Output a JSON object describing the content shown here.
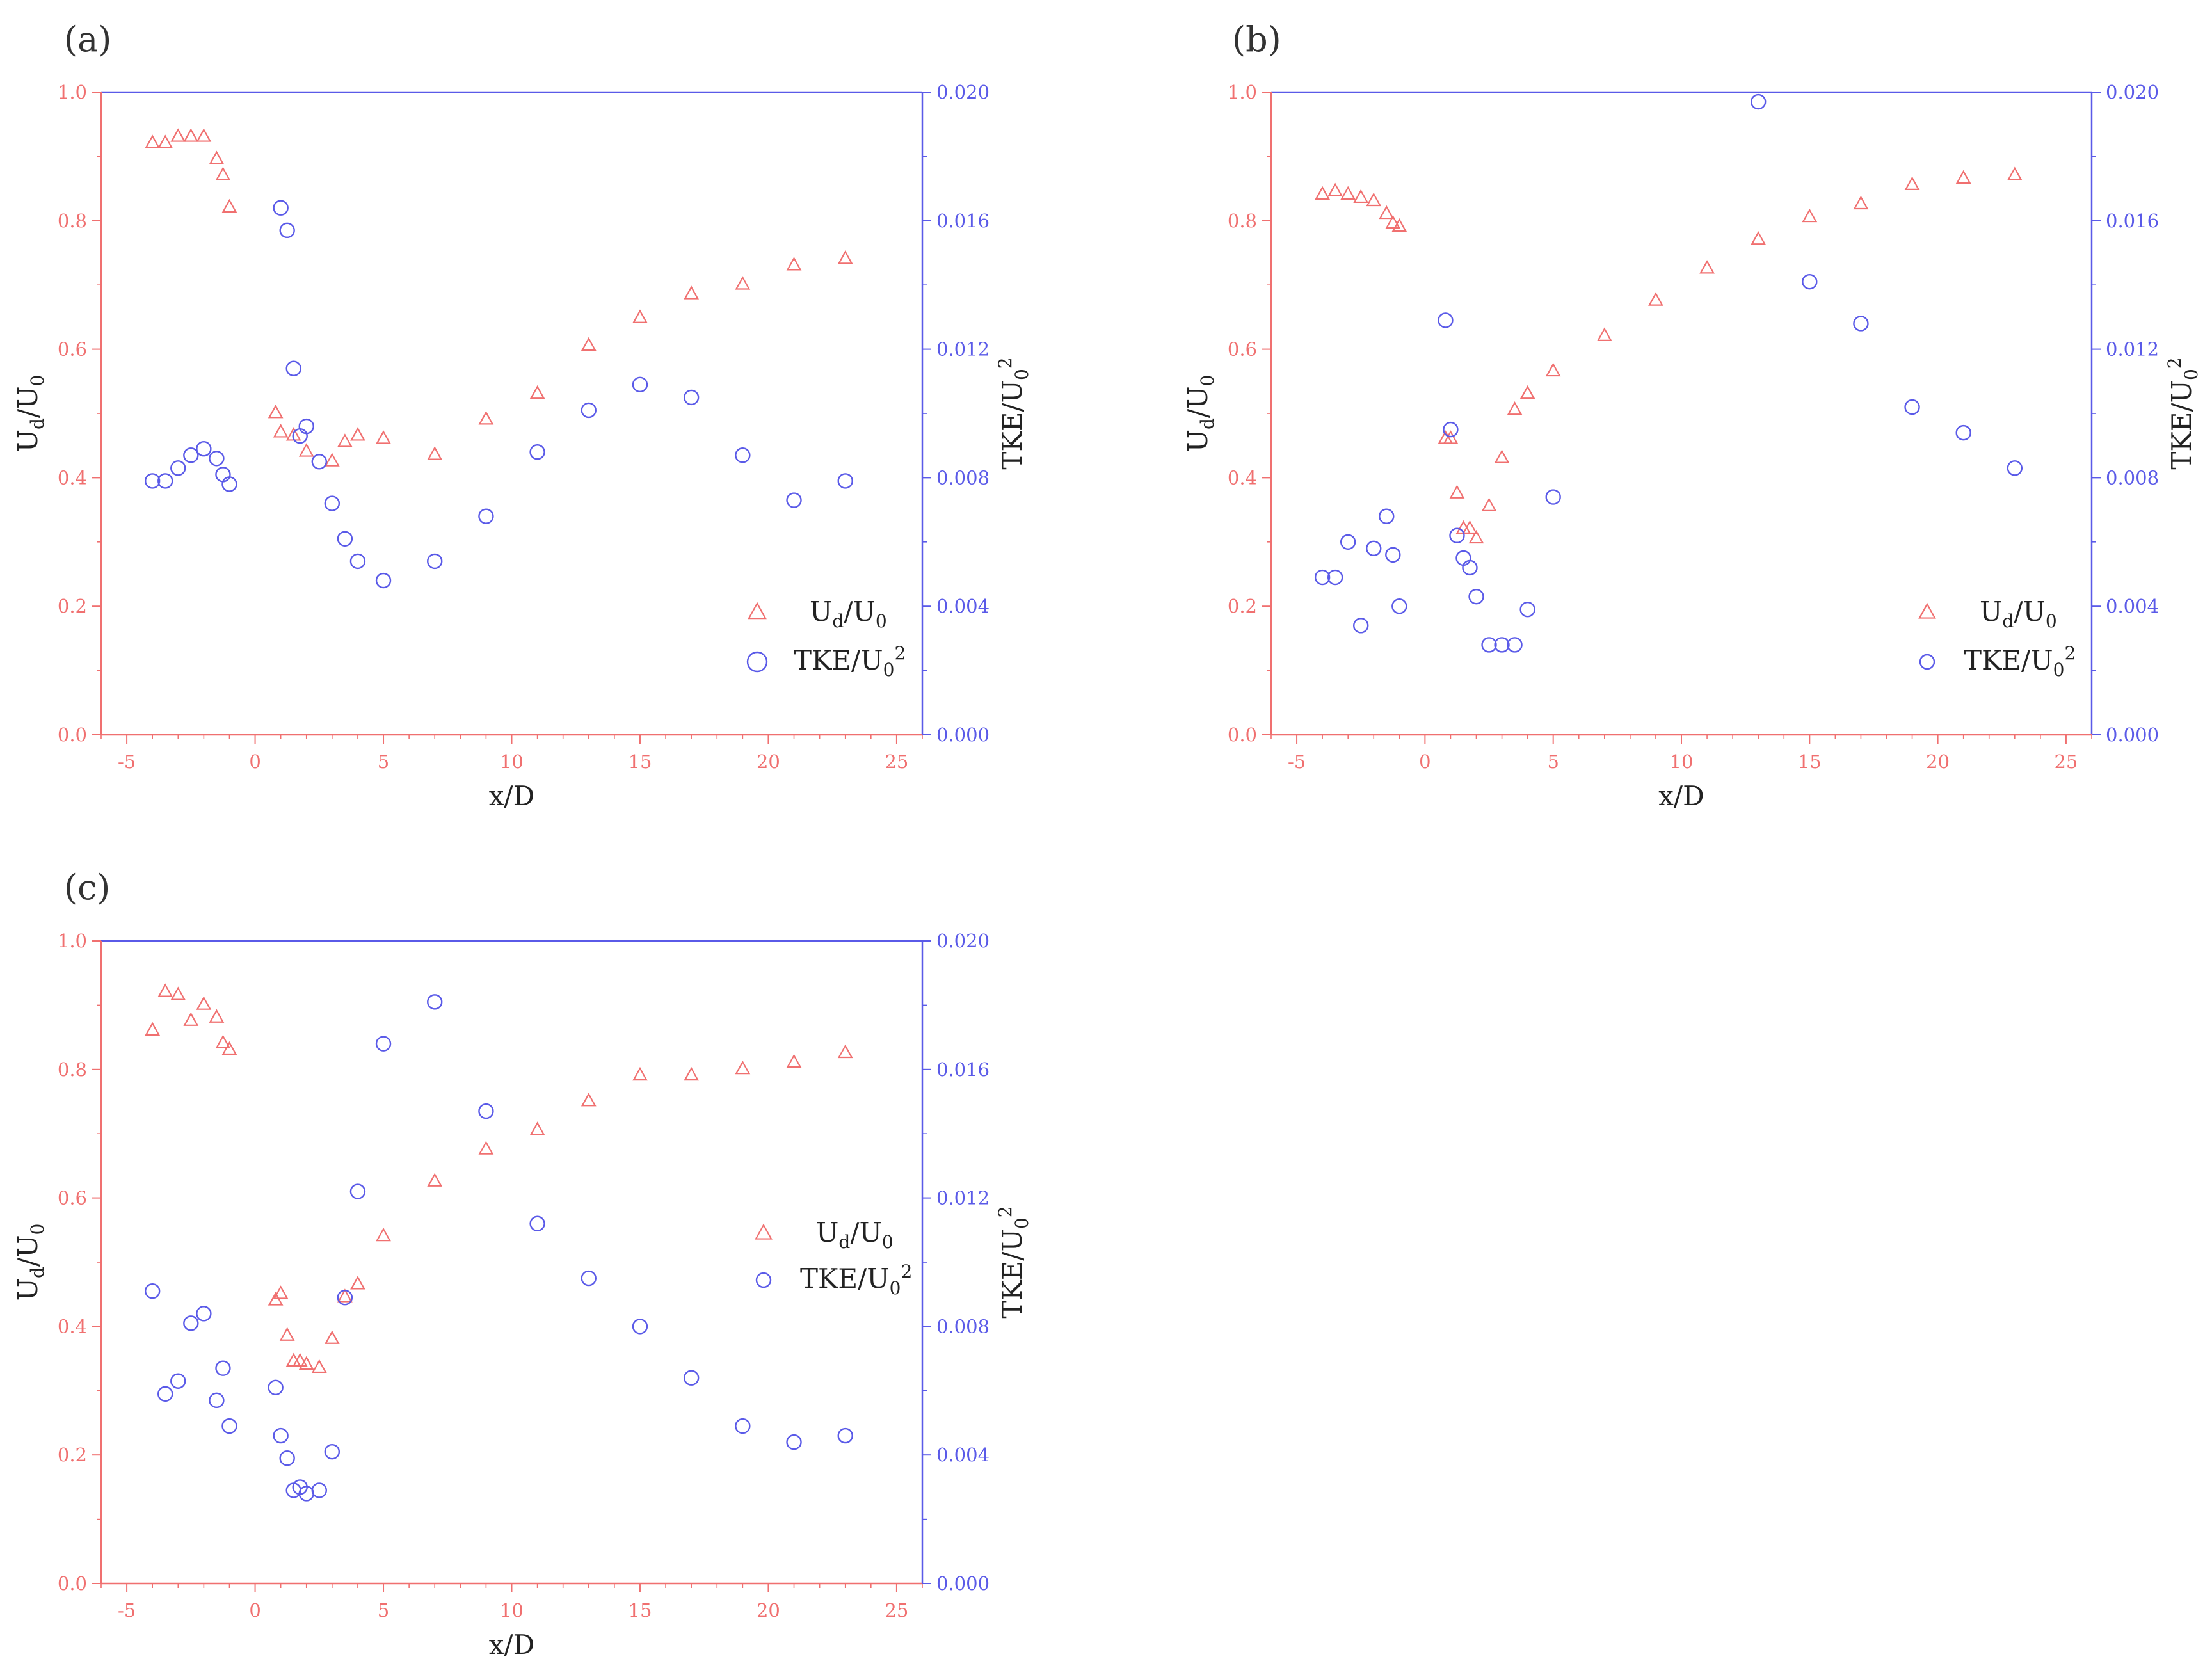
{
  "colors": {
    "ud": "#f07070",
    "tke": "#5a5ae8",
    "text": "#222222"
  },
  "chart_data": [
    {
      "type": "scatter",
      "panel_label": "(a)",
      "xlabel": "x/D",
      "ylabel_left": "U_d/U_0",
      "ylabel_right": "TKE/U_0^2",
      "xlim": [
        -6,
        26
      ],
      "xticks": [
        "-5",
        "0",
        "5",
        "10",
        "15",
        "20",
        "25"
      ],
      "ylim_left": [
        0,
        1
      ],
      "yticks_left": [
        "0.0",
        "0.2",
        "0.4",
        "0.6",
        "0.8",
        "1.0"
      ],
      "ylim_right": [
        0,
        0.02
      ],
      "yticks_right": [
        "0.000",
        "0.004",
        "0.008",
        "0.012",
        "0.016",
        "0.020"
      ],
      "legend_position": "bottom-right",
      "series": [
        {
          "name": "U_d/U_0",
          "axis": "left",
          "marker": "triangle",
          "x": [
            -4,
            -3.5,
            -3,
            -2.5,
            -2,
            -1.5,
            -1.25,
            -1,
            0.8,
            1,
            1.5,
            2,
            3,
            3.5,
            4,
            5,
            7,
            9,
            11,
            13,
            15,
            17,
            19,
            21,
            23
          ],
          "y": [
            0.92,
            0.92,
            0.93,
            0.93,
            0.93,
            0.895,
            0.87,
            0.82,
            0.5,
            0.47,
            0.465,
            0.44,
            0.425,
            0.455,
            0.465,
            0.46,
            0.435,
            0.49,
            0.53,
            0.605,
            0.648,
            0.685,
            0.7,
            0.73,
            0.74
          ]
        },
        {
          "name": "TKE/U_0^2",
          "axis": "right",
          "marker": "circle",
          "x": [
            -4,
            -3.5,
            -3,
            -2.5,
            -2,
            -1.5,
            -1.25,
            -1,
            1,
            1.25,
            1.5,
            1.75,
            2,
            2.5,
            3,
            3.5,
            4,
            5,
            7,
            9,
            11,
            13,
            15,
            17,
            19,
            21,
            23
          ],
          "y": [
            0.0079,
            0.0079,
            0.0083,
            0.0087,
            0.0089,
            0.0086,
            0.0081,
            0.0078,
            0.0164,
            0.0157,
            0.0114,
            0.0093,
            0.0096,
            0.0085,
            0.0072,
            0.0061,
            0.0054,
            0.0048,
            0.0054,
            0.0068,
            0.0088,
            0.0101,
            0.0109,
            0.0105,
            0.0087,
            0.0073,
            0.0079
          ]
        }
      ]
    },
    {
      "type": "scatter",
      "panel_label": "(b)",
      "xlabel": "x/D",
      "ylabel_left": "U_d/U_0",
      "ylabel_right": "TKE/U_0^2",
      "xlim": [
        -6,
        26
      ],
      "xticks": [
        "-5",
        "0",
        "5",
        "10",
        "15",
        "20",
        "25"
      ],
      "ylim_left": [
        0,
        1
      ],
      "yticks_left": [
        "0.0",
        "0.2",
        "0.4",
        "0.6",
        "0.8",
        "1.0"
      ],
      "ylim_right": [
        0,
        0.02
      ],
      "yticks_right": [
        "0.000",
        "0.004",
        "0.008",
        "0.012",
        "0.016",
        "0.020"
      ],
      "legend_position": "bottom-right",
      "series": [
        {
          "name": "U_d/U_0",
          "axis": "left",
          "marker": "triangle",
          "x": [
            -4,
            -3.5,
            -3,
            -2.5,
            -2,
            -1.5,
            -1.25,
            -1,
            0.8,
            1,
            1.25,
            1.5,
            1.75,
            2,
            2.5,
            3,
            3.5,
            4,
            5,
            7,
            9,
            11,
            13,
            15,
            17,
            19,
            21,
            23
          ],
          "y": [
            0.84,
            0.845,
            0.84,
            0.835,
            0.83,
            0.81,
            0.795,
            0.79,
            0.46,
            0.46,
            0.375,
            0.32,
            0.32,
            0.305,
            0.355,
            0.43,
            0.505,
            0.53,
            0.565,
            0.62,
            0.675,
            0.725,
            0.77,
            0.805,
            0.825,
            0.855,
            0.865,
            0.87
          ]
        },
        {
          "name": "TKE/U_0^2",
          "axis": "right",
          "marker": "circle",
          "x": [
            -4,
            -3.5,
            -3,
            -2.5,
            -2,
            -1.5,
            -1.25,
            -1,
            0.8,
            1,
            1.25,
            1.5,
            1.75,
            2,
            2.5,
            3,
            3.5,
            4,
            5,
            13,
            15,
            17,
            19,
            21,
            23
          ],
          "y": [
            0.0049,
            0.0049,
            0.006,
            0.0034,
            0.0058,
            0.0068,
            0.0056,
            0.004,
            0.0129,
            0.0095,
            0.0062,
            0.0055,
            0.0052,
            0.0043,
            0.0028,
            0.0028,
            0.0028,
            0.0039,
            0.0074,
            0.0197,
            0.0141,
            0.0128,
            0.0102,
            0.0094,
            0.0083
          ]
        }
      ]
    },
    {
      "type": "scatter",
      "panel_label": "(c)",
      "xlabel": "x/D",
      "ylabel_left": "U_d/U_0",
      "ylabel_right": "TKE/U_0^2",
      "xlim": [
        -6,
        26
      ],
      "xticks": [
        "-5",
        "0",
        "5",
        "10",
        "15",
        "20",
        "25"
      ],
      "ylim_left": [
        0,
        1
      ],
      "yticks_left": [
        "0.0",
        "0.2",
        "0.4",
        "0.6",
        "0.8",
        "1.0"
      ],
      "ylim_right": [
        0,
        0.02
      ],
      "yticks_right": [
        "0.000",
        "0.004",
        "0.008",
        "0.012",
        "0.016",
        "0.020"
      ],
      "legend_position": "center-right",
      "series": [
        {
          "name": "U_d/U_0",
          "axis": "left",
          "marker": "triangle",
          "x": [
            -4,
            -3.5,
            -3,
            -2.5,
            -2,
            -1.5,
            -1.25,
            -1,
            0.8,
            1,
            1.25,
            1.5,
            1.75,
            2,
            2.5,
            3,
            3.5,
            4,
            5,
            7,
            9,
            11,
            13,
            15,
            17,
            19,
            21,
            23
          ],
          "y": [
            0.86,
            0.92,
            0.915,
            0.875,
            0.9,
            0.88,
            0.84,
            0.83,
            0.44,
            0.45,
            0.385,
            0.345,
            0.345,
            0.34,
            0.335,
            0.38,
            0.445,
            0.465,
            0.54,
            0.625,
            0.675,
            0.705,
            0.75,
            0.79,
            0.79,
            0.8,
            0.81,
            0.825
          ]
        },
        {
          "name": "TKE/U_0^2",
          "axis": "right",
          "marker": "circle",
          "x": [
            -4,
            -3.5,
            -3,
            -2.5,
            -2,
            -1.5,
            -1.25,
            -1,
            0.8,
            1,
            1.25,
            1.5,
            1.75,
            2,
            2.5,
            3,
            3.5,
            4,
            5,
            7,
            9,
            11,
            13,
            15,
            17,
            19,
            21,
            23
          ],
          "y": [
            0.0091,
            0.0059,
            0.0063,
            0.0081,
            0.0084,
            0.0057,
            0.0067,
            0.0049,
            0.0061,
            0.0046,
            0.0039,
            0.0029,
            0.003,
            0.0028,
            0.0029,
            0.0041,
            0.0089,
            0.0122,
            0.0168,
            0.0181,
            0.0147,
            0.0112,
            0.0095,
            0.008,
            0.0064,
            0.0049,
            0.0044,
            0.0046
          ]
        }
      ]
    }
  ]
}
